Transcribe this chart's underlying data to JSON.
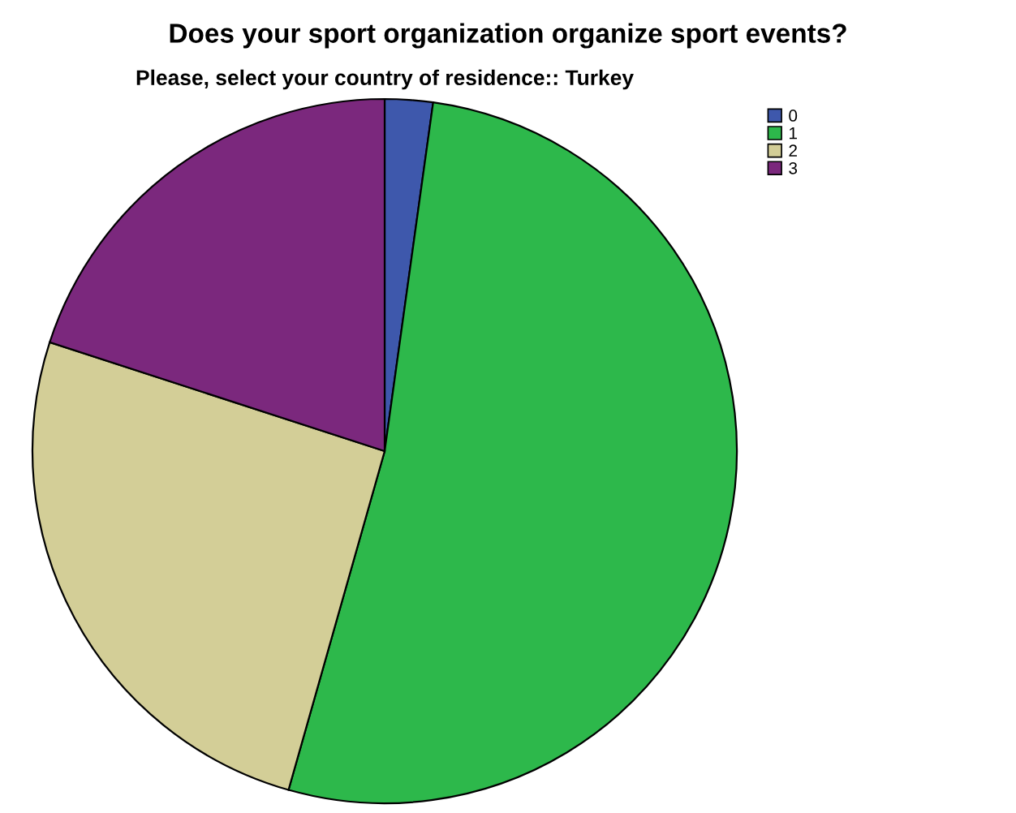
{
  "chart_data": {
    "type": "pie",
    "title": "Does your sport organization organize sport events?",
    "subtitle": "Please, select your country of residence:: Turkey",
    "categories": [
      "0",
      "1",
      "2",
      "3"
    ],
    "values": [
      2.2,
      52.2,
      25.6,
      20.0
    ],
    "colors": [
      "#3e58ac",
      "#2db84b",
      "#d3ce97",
      "#7b287d"
    ],
    "legend": "top right"
  }
}
